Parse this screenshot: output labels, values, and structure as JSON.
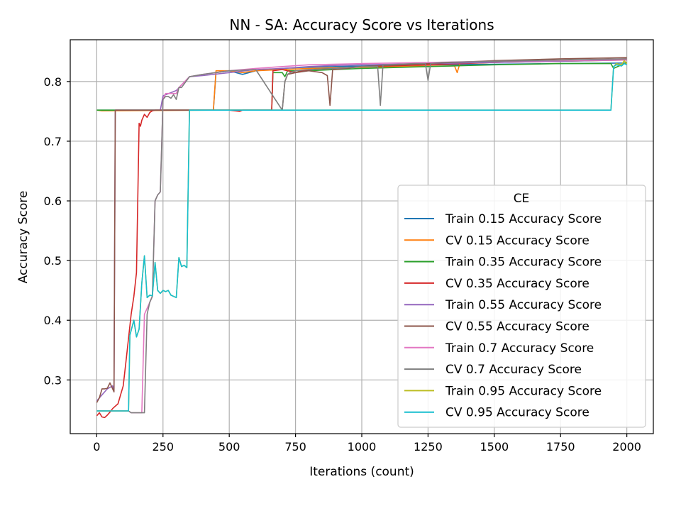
{
  "chart_data": {
    "type": "line",
    "title": "NN - SA: Accuracy Score vs Iterations",
    "xlabel": "Iterations (count)",
    "ylabel": "Accuracy Score",
    "xlim": [
      -100,
      2100
    ],
    "ylim": [
      0.21,
      0.87
    ],
    "xticks": [
      0,
      250,
      500,
      750,
      1000,
      1250,
      1500,
      1750,
      2000
    ],
    "xtick_labels": [
      "0",
      "250",
      "500",
      "750",
      "1000",
      "1250",
      "1500",
      "1750",
      "2000"
    ],
    "yticks": [
      0.3,
      0.4,
      0.5,
      0.6,
      0.7,
      0.8
    ],
    "ytick_labels": [
      "0.3",
      "0.4",
      "0.5",
      "0.6",
      "0.7",
      "0.8"
    ],
    "grid": true,
    "legend": {
      "title": "CE",
      "placement": "lower-right"
    },
    "series": [
      {
        "name": "Train 0.15 Accuracy Score",
        "color": "#1f77b4",
        "x": [
          0,
          440,
          450,
          500,
          550,
          600,
          650,
          700,
          750,
          800,
          900,
          1000,
          1100,
          1250,
          1500,
          1750,
          2000
        ],
        "y": [
          0.752,
          0.752,
          0.815,
          0.818,
          0.812,
          0.818,
          0.82,
          0.822,
          0.823,
          0.824,
          0.825,
          0.826,
          0.827,
          0.828,
          0.829,
          0.83,
          0.831
        ]
      },
      {
        "name": "CV 0.15 Accuracy Score",
        "color": "#ff7f0e",
        "x": [
          0,
          20,
          440,
          450,
          500,
          550,
          600,
          700,
          800,
          900,
          1000,
          1250,
          1350,
          1360,
          1370,
          1500,
          1750,
          2000
        ],
        "y": [
          0.752,
          0.751,
          0.752,
          0.818,
          0.818,
          0.815,
          0.818,
          0.82,
          0.822,
          0.823,
          0.824,
          0.826,
          0.826,
          0.815,
          0.83,
          0.832,
          0.834,
          0.836
        ]
      },
      {
        "name": "Train 0.35 Accuracy Score",
        "color": "#2ca02c",
        "x": [
          0,
          660,
          665,
          700,
          710,
          720,
          800,
          900,
          1000,
          1250,
          1500,
          1750,
          1940,
          1950,
          2000
        ],
        "y": [
          0.752,
          0.752,
          0.815,
          0.815,
          0.808,
          0.818,
          0.818,
          0.82,
          0.822,
          0.825,
          0.828,
          0.83,
          0.83,
          0.822,
          0.832
        ]
      },
      {
        "name": "CV 0.35 Accuracy Score",
        "color": "#d62728",
        "x": [
          0,
          10,
          20,
          30,
          40,
          50,
          60,
          70,
          80,
          90,
          100,
          110,
          120,
          130,
          140,
          150,
          160,
          165,
          170,
          180,
          190,
          200,
          210,
          220,
          240,
          250,
          300,
          400,
          500,
          540,
          550,
          650,
          660,
          665,
          700,
          750,
          800,
          900,
          1000,
          1250,
          1500,
          1750,
          2000
        ],
        "y": [
          0.24,
          0.245,
          0.238,
          0.237,
          0.241,
          0.246,
          0.252,
          0.256,
          0.26,
          0.275,
          0.29,
          0.33,
          0.37,
          0.41,
          0.44,
          0.48,
          0.73,
          0.725,
          0.735,
          0.745,
          0.74,
          0.748,
          0.751,
          0.752,
          0.752,
          0.752,
          0.752,
          0.752,
          0.752,
          0.75,
          0.752,
          0.752,
          0.752,
          0.818,
          0.82,
          0.815,
          0.82,
          0.822,
          0.825,
          0.828,
          0.832,
          0.835,
          0.838
        ]
      },
      {
        "name": "Train 0.55 Accuracy Score",
        "color": "#9467bd",
        "x": [
          0,
          40,
          60,
          65,
          70,
          200,
          240,
          250,
          300,
          350,
          400,
          500,
          600,
          700,
          800,
          900,
          1000,
          1250,
          1500,
          1750,
          2000
        ],
        "y": [
          0.265,
          0.285,
          0.29,
          0.28,
          0.752,
          0.752,
          0.752,
          0.776,
          0.785,
          0.808,
          0.81,
          0.815,
          0.82,
          0.822,
          0.825,
          0.827,
          0.828,
          0.83,
          0.832,
          0.834,
          0.836
        ]
      },
      {
        "name": "CV 0.55 Accuracy Score",
        "color": "#8c564b",
        "x": [
          0,
          10,
          20,
          30,
          40,
          50,
          60,
          65,
          70,
          150,
          200,
          250,
          300,
          400,
          700,
          710,
          720,
          750,
          800,
          850,
          870,
          880,
          890,
          900,
          1000,
          1250,
          1500,
          1750,
          2000
        ],
        "y": [
          0.262,
          0.27,
          0.285,
          0.285,
          0.286,
          0.295,
          0.285,
          0.28,
          0.752,
          0.752,
          0.752,
          0.752,
          0.752,
          0.752,
          0.752,
          0.8,
          0.812,
          0.815,
          0.818,
          0.815,
          0.81,
          0.76,
          0.82,
          0.82,
          0.825,
          0.83,
          0.835,
          0.838,
          0.84
        ]
      },
      {
        "name": "Train 0.7 Accuracy Score",
        "color": "#e377c2",
        "x": [
          0,
          120,
          130,
          170,
          180,
          200,
          210,
          220,
          230,
          240,
          250,
          260,
          300,
          310,
          350,
          400,
          500,
          600,
          700,
          800,
          1000,
          1250,
          1500,
          1750,
          2000
        ],
        "y": [
          0.248,
          0.248,
          0.245,
          0.245,
          0.41,
          0.43,
          0.44,
          0.6,
          0.61,
          0.615,
          0.77,
          0.78,
          0.78,
          0.79,
          0.808,
          0.812,
          0.818,
          0.822,
          0.825,
          0.828,
          0.83,
          0.832,
          0.834,
          0.835,
          0.836
        ]
      },
      {
        "name": "CV 0.7 Accuracy Score",
        "color": "#7f7f7f",
        "x": [
          0,
          120,
          130,
          170,
          180,
          190,
          200,
          210,
          220,
          230,
          240,
          250,
          260,
          270,
          280,
          290,
          300,
          310,
          320,
          350,
          400,
          500,
          600,
          700,
          710,
          720,
          730,
          750,
          800,
          900,
          1000,
          1060,
          1070,
          1080,
          1100,
          1200,
          1240,
          1250,
          1260,
          1300,
          1500,
          1750,
          2000
        ],
        "y": [
          0.248,
          0.248,
          0.245,
          0.245,
          0.245,
          0.41,
          0.43,
          0.44,
          0.6,
          0.61,
          0.615,
          0.77,
          0.775,
          0.775,
          0.772,
          0.778,
          0.77,
          0.79,
          0.79,
          0.808,
          0.812,
          0.818,
          0.82,
          0.752,
          0.8,
          0.812,
          0.815,
          0.818,
          0.82,
          0.822,
          0.825,
          0.825,
          0.76,
          0.828,
          0.828,
          0.83,
          0.83,
          0.802,
          0.83,
          0.832,
          0.834,
          0.836,
          0.838
        ]
      },
      {
        "name": "Train 0.95 Accuracy Score",
        "color": "#bcbd22",
        "x": [
          0,
          120,
          125,
          140,
          150,
          160,
          170,
          180,
          190,
          200,
          210,
          220,
          230,
          240,
          250,
          260,
          270,
          280,
          300,
          310,
          320,
          330,
          340,
          350,
          360,
          400,
          800,
          1200,
          1600,
          1940,
          1950,
          1960,
          1980,
          1990,
          2000
        ],
        "y": [
          0.248,
          0.248,
          0.375,
          0.4,
          0.372,
          0.385,
          0.462,
          0.508,
          0.438,
          0.442,
          0.441,
          0.497,
          0.45,
          0.445,
          0.45,
          0.448,
          0.45,
          0.442,
          0.438,
          0.505,
          0.49,
          0.492,
          0.488,
          0.752,
          0.752,
          0.752,
          0.752,
          0.752,
          0.752,
          0.752,
          0.825,
          0.83,
          0.828,
          0.835,
          0.83
        ]
      },
      {
        "name": "CV 0.95 Accuracy Score",
        "color": "#17becf",
        "x": [
          0,
          120,
          125,
          140,
          150,
          160,
          170,
          180,
          190,
          200,
          210,
          220,
          230,
          240,
          250,
          260,
          270,
          280,
          300,
          310,
          320,
          330,
          340,
          350,
          360,
          400,
          800,
          1200,
          1600,
          1940,
          1950,
          1960,
          1980,
          1990,
          2000
        ],
        "y": [
          0.248,
          0.248,
          0.375,
          0.4,
          0.372,
          0.385,
          0.462,
          0.508,
          0.438,
          0.442,
          0.441,
          0.497,
          0.45,
          0.445,
          0.45,
          0.448,
          0.45,
          0.442,
          0.438,
          0.505,
          0.49,
          0.492,
          0.488,
          0.752,
          0.752,
          0.752,
          0.752,
          0.752,
          0.752,
          0.752,
          0.825,
          0.828,
          0.826,
          0.83,
          0.828
        ]
      }
    ]
  }
}
